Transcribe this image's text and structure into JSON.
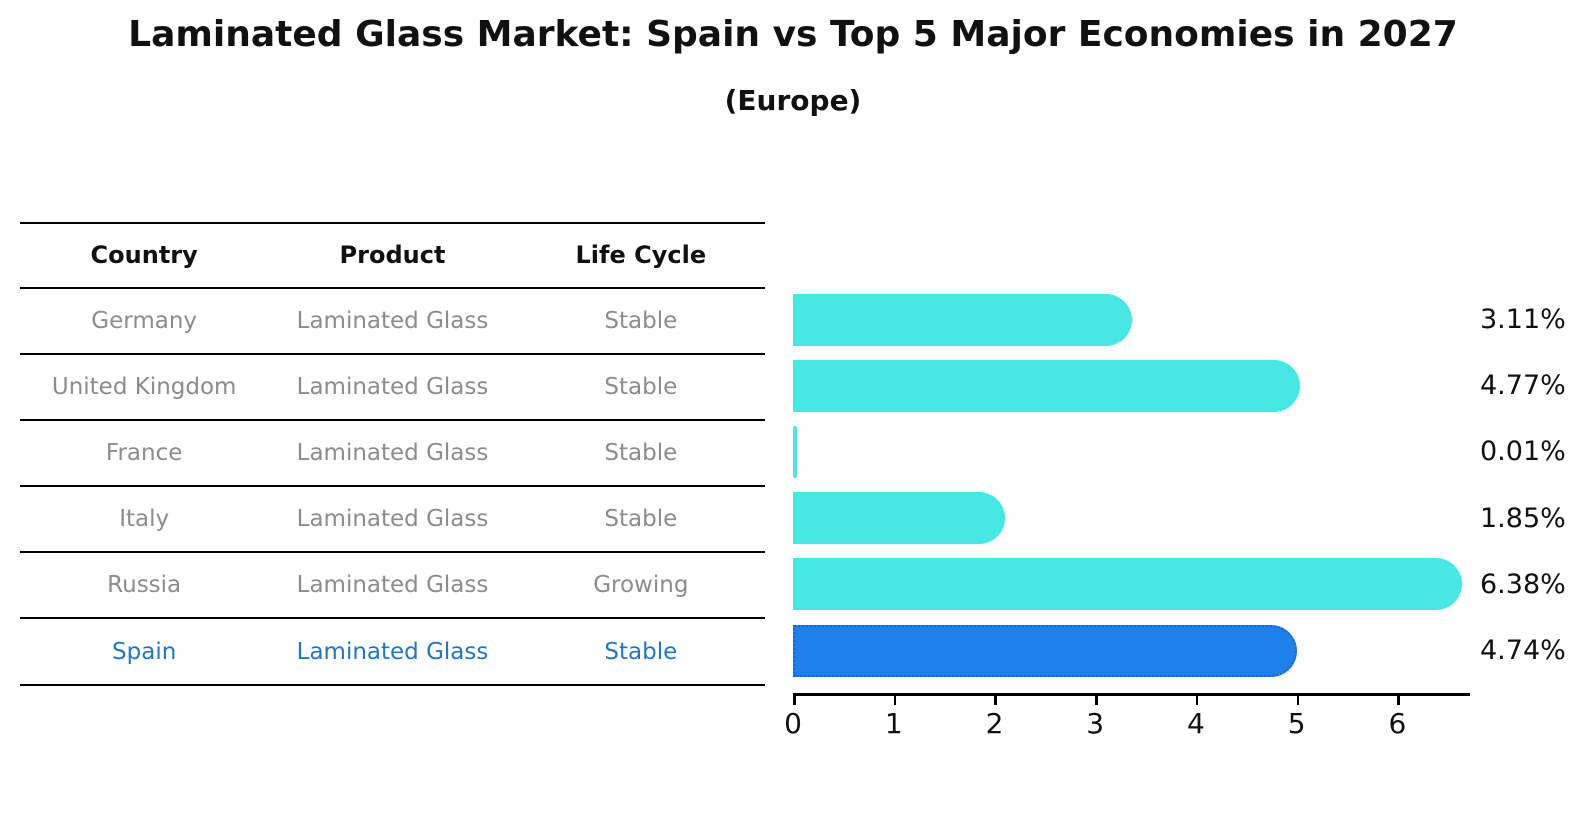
{
  "title": "Laminated Glass Market: Spain vs Top 5 Major Economies in 2027",
  "subtitle": "(Europe)",
  "table": {
    "columns": [
      "Country",
      "Product",
      "Life Cycle"
    ],
    "rows": [
      {
        "country": "Germany",
        "product": "Laminated Glass",
        "life_cycle": "Stable",
        "highlight": false
      },
      {
        "country": "United Kingdom",
        "product": "Laminated Glass",
        "life_cycle": "Stable",
        "highlight": false
      },
      {
        "country": "France",
        "product": "Laminated Glass",
        "life_cycle": "Stable",
        "highlight": false
      },
      {
        "country": "Italy",
        "product": "Laminated Glass",
        "life_cycle": "Stable",
        "highlight": false
      },
      {
        "country": "Russia",
        "product": "Laminated Glass",
        "life_cycle": "Growing",
        "highlight": false
      },
      {
        "country": "Spain",
        "product": "Laminated Glass",
        "life_cycle": "Stable",
        "highlight": true
      }
    ]
  },
  "chart_data": {
    "type": "bar",
    "orientation": "horizontal",
    "title": "Laminated Glass Market: Spain vs Top 5 Major Economies in 2027 (Europe)",
    "xlabel": "",
    "ylabel": "",
    "categories": [
      "Germany",
      "United Kingdom",
      "France",
      "Italy",
      "Russia",
      "Spain"
    ],
    "values": [
      3.11,
      4.77,
      0.01,
      1.85,
      6.38,
      4.74
    ],
    "value_labels": [
      "3.11%",
      "4.77%",
      "0.01%",
      "1.85%",
      "6.38%",
      "4.74%"
    ],
    "xlim": [
      0,
      6.72
    ],
    "x_ticks": [
      0,
      1,
      2,
      3,
      4,
      5,
      6
    ],
    "grid": false,
    "legend": false,
    "highlight_category": "Spain"
  },
  "colors": {
    "bar": "#45E8E2",
    "highlight_bar": "#1F80EC",
    "highlight_bar_border": "#1766D6",
    "highlight_text": "#2277C4",
    "table_text": "#8C8C8C",
    "header_text": "#111111",
    "axis": "#000000",
    "background": "#FFFFFF"
  }
}
